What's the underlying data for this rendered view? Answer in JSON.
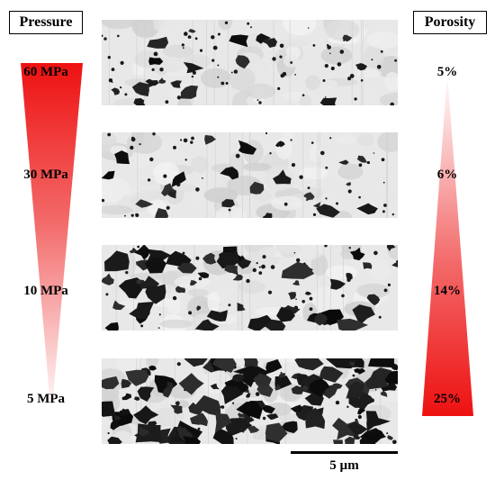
{
  "pressure": {
    "header": "Pressure",
    "levels": [
      "60 MPa",
      "30 MPa",
      "10 MPa",
      "5 MPa"
    ],
    "gradient_color": "#ee1111"
  },
  "porosity": {
    "header": "Porosity",
    "levels": [
      "5%",
      "6%",
      "14%",
      "25%"
    ],
    "gradient_color": "#ee1111"
  },
  "scale_bar": {
    "label": "5 µm"
  },
  "micrographs": [
    {
      "name": "60 MPa micrograph",
      "pore_density": "low"
    },
    {
      "name": "30 MPa micrograph",
      "pore_density": "low"
    },
    {
      "name": "10 MPa micrograph",
      "pore_density": "medium"
    },
    {
      "name": "5 MPa micrograph",
      "pore_density": "high"
    }
  ]
}
